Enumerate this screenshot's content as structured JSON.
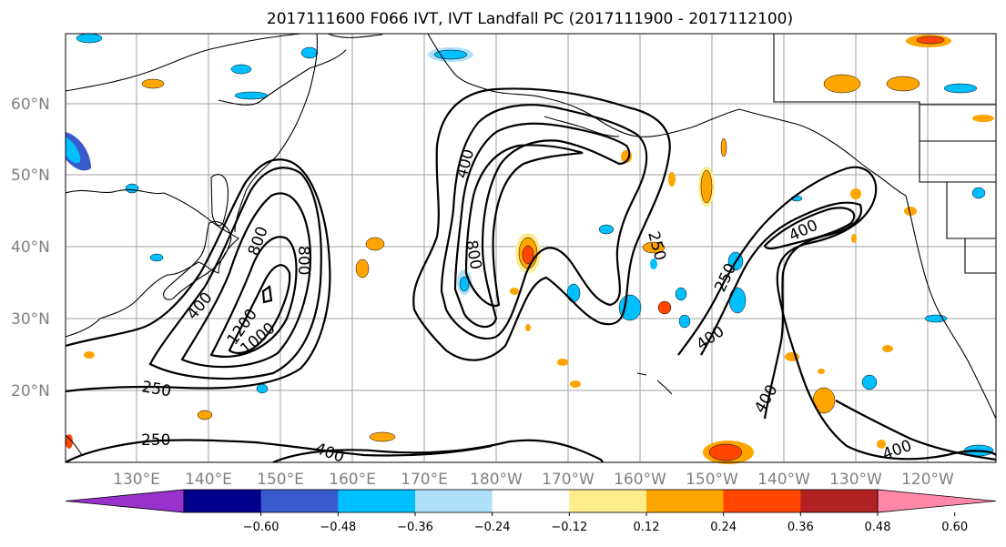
{
  "title": "2017111600 F066 IVT, IVT Landfall PC (2017111900 - 2017112100)",
  "lat_labels": [
    "60°N",
    "50°N",
    "40°N",
    "30°N",
    "20°N"
  ],
  "lon_labels": [
    "130°E",
    "140°E",
    "150°E",
    "160°E",
    "170°E",
    "180°W",
    "170°W",
    "160°W",
    "150°W",
    "140°W",
    "130°W",
    "120°W"
  ],
  "contour_labels": [
    "400",
    "800",
    "800",
    "1200",
    "1000",
    "400",
    "250",
    "250",
    "400",
    "800",
    "400",
    "250",
    "400",
    "250",
    "400",
    "400",
    "400"
  ],
  "colorbar": {
    "ticks": [
      "−0.60",
      "−0.48",
      "−0.36",
      "−0.24",
      "−0.12",
      "0.12",
      "0.24",
      "0.36",
      "0.48",
      "0.60"
    ],
    "colors": [
      "#9932cc",
      "#00008b",
      "#3a5bcd",
      "#00bfff",
      "#aee0fb",
      "#ffffff",
      "#ffec8b",
      "#ffa500",
      "#ff4500",
      "#b22222",
      "#ff88aa"
    ]
  }
}
